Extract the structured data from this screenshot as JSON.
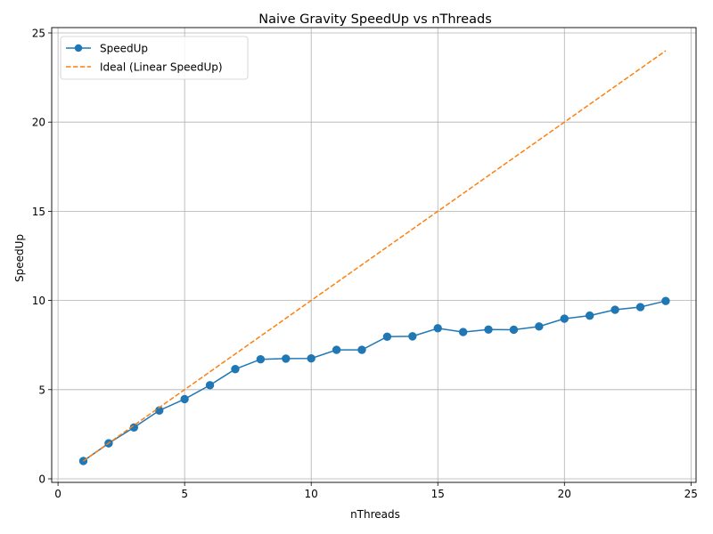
{
  "chart_data": {
    "type": "line",
    "title": "Naive Gravity SpeedUp vs nThreads",
    "xlabel": "nThreads",
    "ylabel": "SpeedUp",
    "xlim": [
      0,
      25
    ],
    "ylim": [
      0,
      25
    ],
    "xticks": [
      0,
      5,
      10,
      15,
      20,
      25
    ],
    "yticks": [
      0,
      5,
      10,
      15,
      20,
      25
    ],
    "grid": true,
    "legend_position": "top-left",
    "x": [
      1,
      2,
      3,
      4,
      5,
      6,
      7,
      8,
      9,
      10,
      11,
      12,
      13,
      14,
      15,
      16,
      17,
      18,
      19,
      20,
      21,
      22,
      23,
      24
    ],
    "series": [
      {
        "name": "SpeedUp",
        "style": "solid-marker",
        "color": "#1f77b4",
        "values": [
          1.0,
          1.99,
          2.88,
          3.83,
          4.47,
          5.25,
          6.15,
          6.7,
          6.74,
          6.75,
          7.23,
          7.23,
          7.97,
          7.99,
          8.44,
          8.23,
          8.37,
          8.36,
          8.54,
          8.98,
          9.15,
          9.48,
          9.63,
          9.97
        ]
      },
      {
        "name": "Ideal (Linear SpeedUp)",
        "style": "dashed",
        "color": "#ff7f0e",
        "values": [
          1,
          2,
          3,
          4,
          5,
          6,
          7,
          8,
          9,
          10,
          11,
          12,
          13,
          14,
          15,
          16,
          17,
          18,
          19,
          20,
          21,
          22,
          23,
          24
        ]
      }
    ]
  }
}
